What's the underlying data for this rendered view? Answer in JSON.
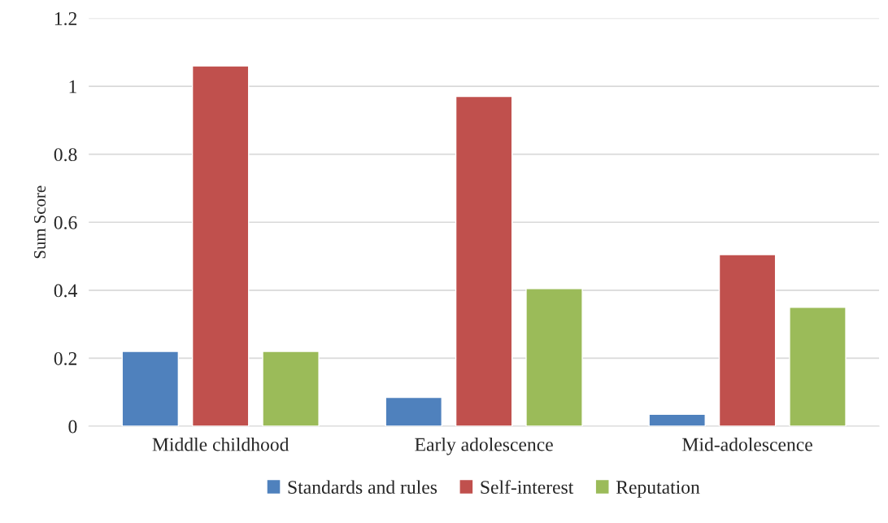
{
  "chart_data": {
    "type": "bar",
    "ylabel": "Sum Score",
    "categories": [
      "Middle childhood",
      "Early adolescence",
      "Mid-adolescence"
    ],
    "series": [
      {
        "name": "Standards and rules",
        "color": "#4f81bd",
        "values": [
          0.22,
          0.085,
          0.035
        ]
      },
      {
        "name": "Self-interest",
        "color": "#c0504d",
        "values": [
          1.06,
          0.97,
          0.505
        ]
      },
      {
        "name": "Reputation",
        "color": "#9bbb59",
        "values": [
          0.22,
          0.405,
          0.35
        ]
      }
    ],
    "ylim": [
      0,
      1.2
    ],
    "yticks": [
      0,
      0.2,
      0.4,
      0.6,
      0.8,
      1,
      1.2
    ],
    "grid": "y",
    "legend": "bottom"
  }
}
